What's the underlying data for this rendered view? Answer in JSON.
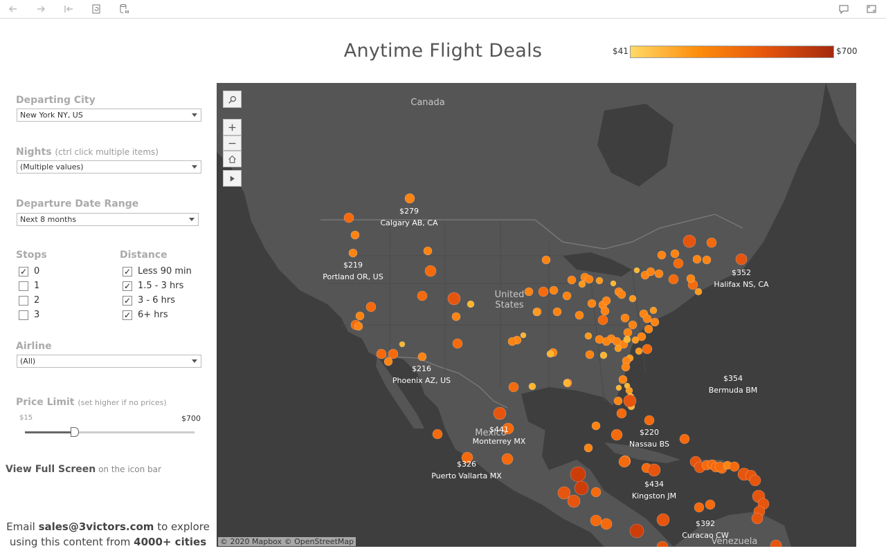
{
  "toolbar": {
    "back_icon": "back-arrow-icon",
    "forward_icon": "forward-arrow-icon",
    "first_icon": "skip-to-start-icon",
    "revert_icon": "revert-icon",
    "pause_icon": "pause-data-icon",
    "comment_icon": "comment-icon",
    "fullscreen_icon": "fullscreen-icon"
  },
  "title": "Anytime Flight Deals",
  "legend": {
    "min": "$41",
    "max": "$700"
  },
  "filters": {
    "departing_city": {
      "label": "Departing City",
      "value": "New York NY, US"
    },
    "nights": {
      "label": "Nights",
      "hint": "(ctrl click multiple items)",
      "value": "(Multiple values)"
    },
    "date_range": {
      "label": "Departure Date Range",
      "value": "Next 8 months"
    },
    "stops": {
      "label": "Stops",
      "options": [
        {
          "label": "0",
          "checked": true
        },
        {
          "label": "1",
          "checked": false
        },
        {
          "label": "2",
          "checked": false
        },
        {
          "label": "3",
          "checked": false
        }
      ]
    },
    "distance": {
      "label": "Distance",
      "options": [
        {
          "label": "Less 90 min",
          "checked": true
        },
        {
          "label": "1.5 - 3 hrs",
          "checked": true
        },
        {
          "label": "3 - 6 hrs",
          "checked": true
        },
        {
          "label": "6+ hrs",
          "checked": true
        }
      ]
    },
    "airline": {
      "label": "Airline",
      "value": "(All)"
    },
    "price_limit": {
      "label": "Price Limit",
      "hint": "(set higher if no prices)",
      "min": "$15",
      "max": "$700",
      "value_fraction": 0.29
    }
  },
  "fullscreen_note": {
    "bold": "View Full Screen",
    "rest": " on the icon bar"
  },
  "email_note": {
    "pre": "Email ",
    "email": "sales@3victors.com",
    "mid": " to explore",
    "line2": "using this content from ",
    "cities": "4000+ cities"
  },
  "map": {
    "region_labels": [
      "Canada",
      "United",
      "States",
      "Mexico",
      "Venezuela"
    ],
    "attribution": "© 2020 Mapbox  © OpenStreetMap",
    "labeled_cities": [
      {
        "price": "$279",
        "name": "Calgary AB, CA"
      },
      {
        "price": "$219",
        "name": "Portland OR, US"
      },
      {
        "price": "$352",
        "name": "Halifax NS, CA"
      },
      {
        "price": "$216",
        "name": "Phoenix AZ, US"
      },
      {
        "price": "$354",
        "name": "Bermuda BM"
      },
      {
        "price": "$441",
        "name": "Monterrey MX"
      },
      {
        "price": "$220",
        "name": "Nassau BS"
      },
      {
        "price": "$326",
        "name": "Puerto Vallarta MX"
      },
      {
        "price": "$434",
        "name": "Kingston JM"
      },
      {
        "price": "$392",
        "name": "Curacao CW"
      }
    ]
  }
}
